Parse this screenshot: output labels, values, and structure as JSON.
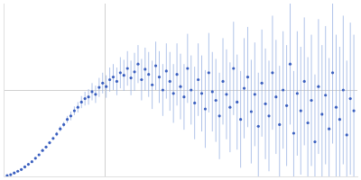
{
  "chart_data": {
    "type": "scatter",
    "color": "#3a5fbf",
    "marker": "circle",
    "grid": true,
    "tick_labels": false,
    "xlim": [
      0,
      400
    ],
    "ylim": [
      0,
      200
    ],
    "xticks": [
      115
    ],
    "yticks": [
      100
    ],
    "x": [
      4,
      8,
      12,
      16,
      20,
      24,
      28,
      32,
      36,
      40,
      44,
      48,
      52,
      56,
      60,
      64,
      68,
      72,
      76,
      80,
      84,
      88,
      92,
      96,
      100,
      104,
      108,
      112,
      116,
      120,
      124,
      128,
      132,
      136,
      140,
      144,
      148,
      152,
      156,
      160,
      164,
      168,
      172,
      176,
      180,
      184,
      188,
      192,
      196,
      200,
      204,
      208,
      212,
      216,
      220,
      224,
      228,
      232,
      236,
      240,
      244,
      248,
      252,
      256,
      260,
      264,
      268,
      272,
      276,
      280,
      284,
      288,
      292,
      296,
      300,
      304,
      308,
      312,
      316,
      320,
      324,
      328,
      332,
      336,
      340,
      344,
      348,
      352,
      356,
      360,
      364,
      368,
      372,
      376,
      380,
      384,
      388,
      392,
      396
    ],
    "values": [
      1,
      2,
      4,
      6,
      8,
      11,
      14,
      17,
      21,
      25,
      30,
      34,
      39,
      44,
      49,
      55,
      60,
      66,
      70,
      76,
      80,
      86,
      90,
      92,
      98,
      95,
      103,
      108,
      104,
      112,
      115,
      110,
      120,
      117,
      125,
      114,
      121,
      130,
      112,
      124,
      118,
      106,
      128,
      115,
      100,
      122,
      110,
      96,
      118,
      104,
      92,
      125,
      100,
      85,
      112,
      96,
      78,
      120,
      98,
      88,
      70,
      110,
      95,
      80,
      125,
      86,
      66,
      102,
      115,
      75,
      95,
      58,
      108,
      84,
      70,
      120,
      92,
      60,
      100,
      82,
      130,
      50,
      96,
      76,
      110,
      62,
      88,
      40,
      104,
      72,
      94,
      55,
      120,
      80,
      66,
      100,
      48,
      90,
      76
    ],
    "errors": [
      0.5,
      0.5,
      0.5,
      0.5,
      0.6,
      0.7,
      0.8,
      1,
      1,
      1.2,
      1.5,
      1.5,
      2,
      2,
      2.5,
      3,
      3,
      4,
      5,
      5,
      6,
      7,
      8,
      9,
      10,
      10,
      11,
      12,
      13,
      14,
      15,
      16,
      18,
      18,
      20,
      20,
      22,
      22,
      24,
      25,
      26,
      28,
      28,
      30,
      30,
      32,
      34,
      34,
      36,
      38,
      38,
      40,
      40,
      42,
      42,
      44,
      45,
      46,
      46,
      48,
      50,
      50,
      52,
      52,
      54,
      55,
      56,
      58,
      58,
      60,
      60,
      62,
      62,
      64,
      64,
      66,
      66,
      68,
      68,
      70,
      70,
      72,
      72,
      74,
      74,
      76,
      76,
      78,
      78,
      80,
      80,
      82,
      82,
      84,
      84,
      86,
      86,
      88,
      88
    ]
  }
}
